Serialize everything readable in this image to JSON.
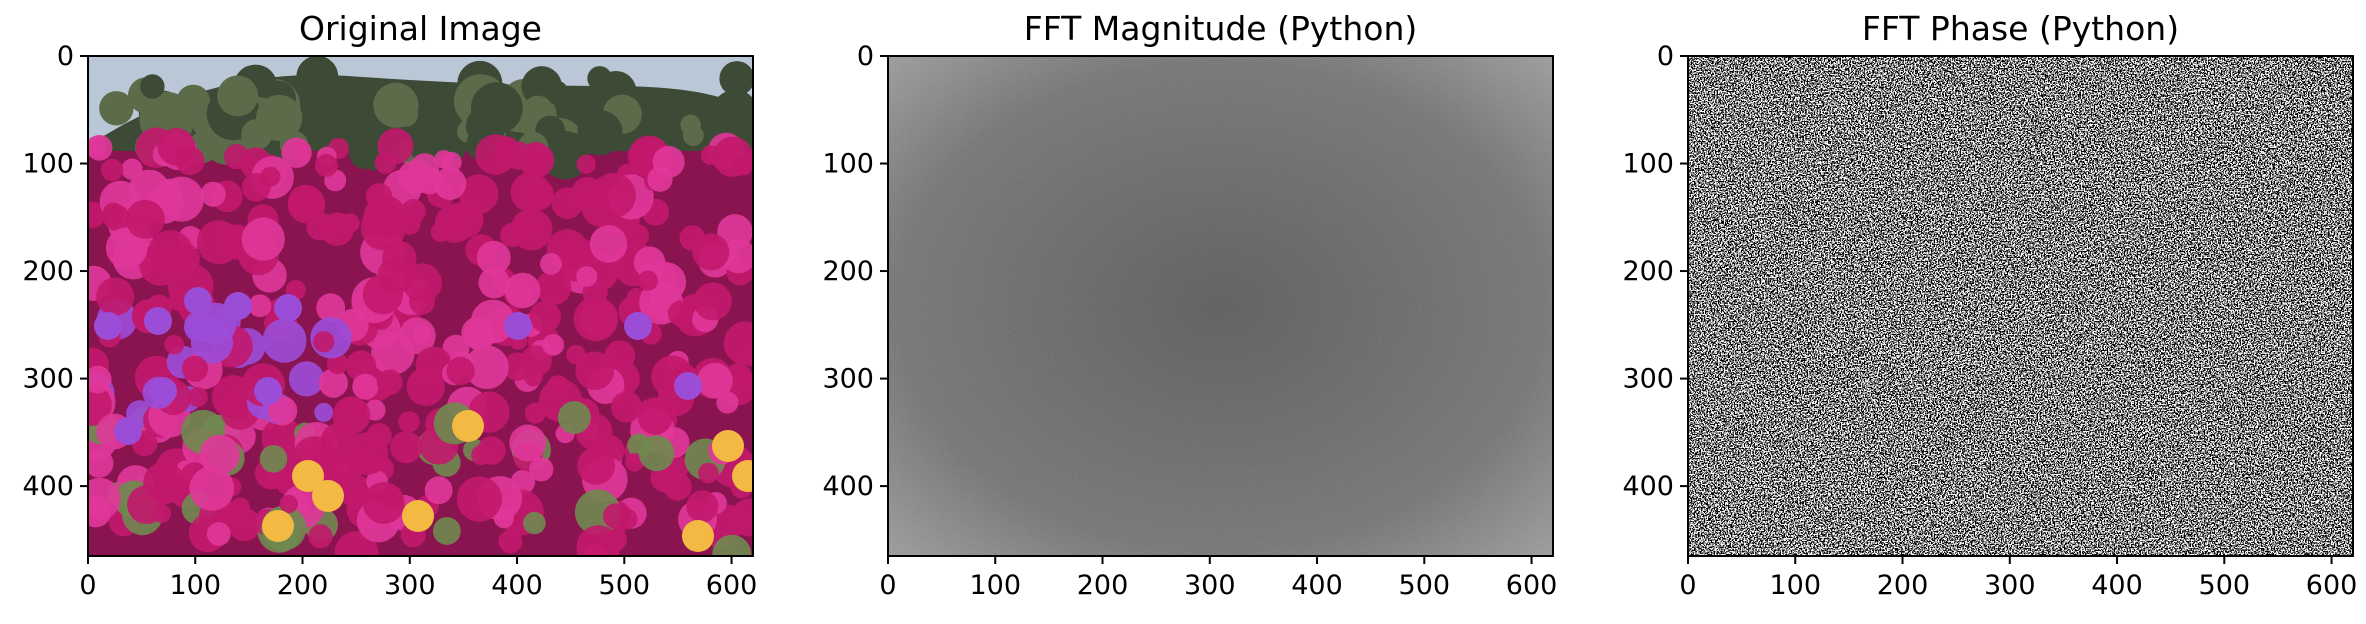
{
  "chart_data": [
    {
      "type": "image",
      "title": "Original Image",
      "xlim": [
        0,
        620
      ],
      "ylim": [
        465,
        0
      ],
      "xticks": [
        0,
        100,
        200,
        300,
        400,
        500,
        600
      ],
      "yticks": [
        0,
        100,
        200,
        300,
        400
      ],
      "image_content": "photo-flowers"
    },
    {
      "type": "heatmap",
      "title": "FFT Magnitude (Python)",
      "xlim": [
        0,
        620
      ],
      "ylim": [
        465,
        0
      ],
      "xticks": [
        0,
        100,
        200,
        300,
        400,
        500,
        600
      ],
      "yticks": [
        0,
        100,
        200,
        300,
        400
      ],
      "colormap": "gray",
      "image_content": "fft-magnitude-noise"
    },
    {
      "type": "heatmap",
      "title": "FFT Phase (Python)",
      "xlim": [
        0,
        620
      ],
      "ylim": [
        465,
        0
      ],
      "xticks": [
        0,
        100,
        200,
        300,
        400,
        500,
        600
      ],
      "yticks": [
        0,
        100,
        200,
        300,
        400
      ],
      "colormap": "gray",
      "image_content": "fft-phase-noise"
    }
  ],
  "colors": {
    "sky": "#b9c7d6",
    "foliage_dark": "#3d4a35",
    "foliage_mid": "#5c6b4a",
    "flower_magenta": "#c2186b",
    "flower_magenta_light": "#e0379a",
    "flower_purple": "#9b4dd8",
    "flower_yellow": "#f4b942",
    "leaf_green": "#6f8a4f",
    "magnitude_gray": "#5a5a5a"
  }
}
